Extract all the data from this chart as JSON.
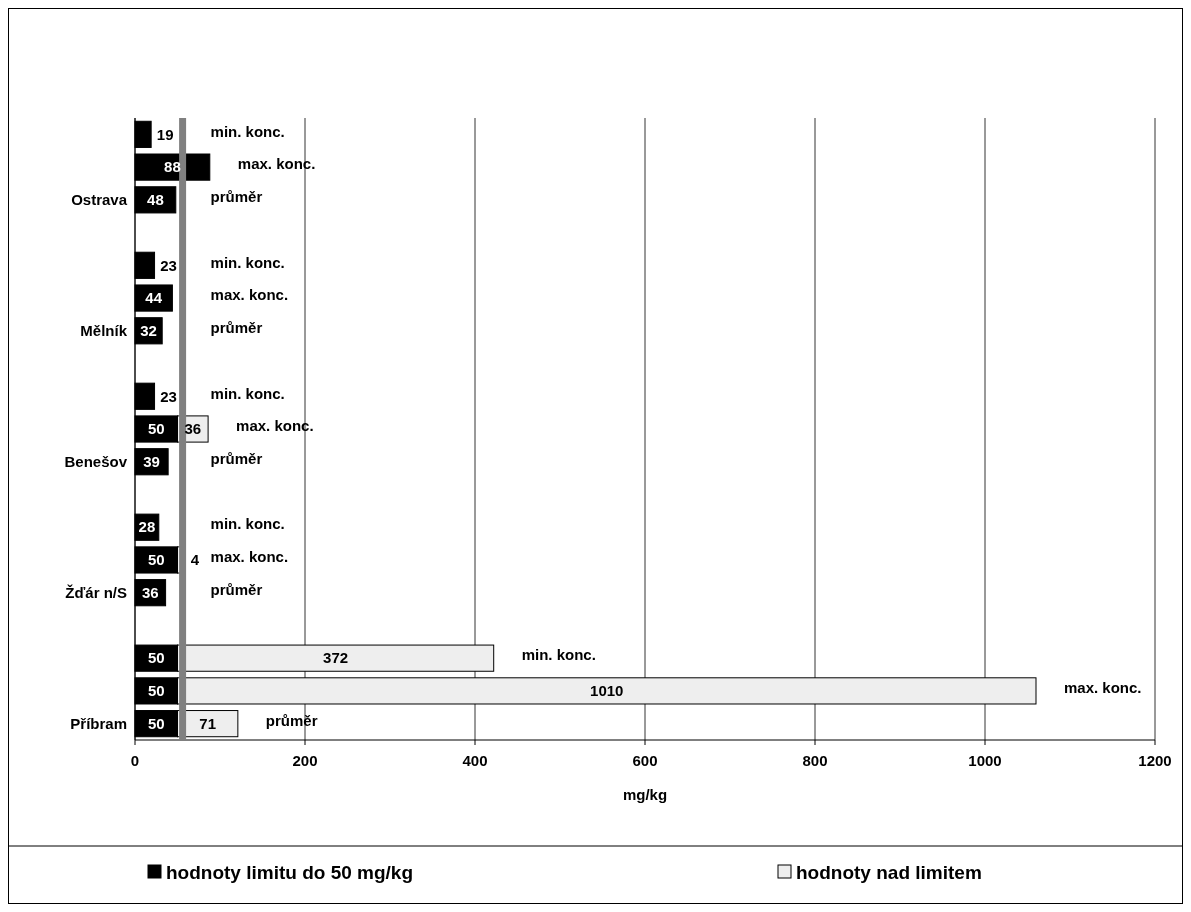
{
  "chart_data": {
    "type": "bar",
    "orientation": "horizontal",
    "stacked": true,
    "categories": [
      null,
      null,
      "Ostrava",
      null,
      null,
      null,
      "Mělník",
      null,
      null,
      null,
      "Benešov",
      null,
      null,
      null,
      "Žďár n/S",
      null,
      null,
      null,
      "Příbram"
    ],
    "series": [
      {
        "name": "hodnoty limitu do 50 mg/kg",
        "color": "#000000",
        "values": [
          19,
          88,
          48,
          null,
          23,
          44,
          32,
          null,
          23,
          50,
          39,
          null,
          28,
          50,
          36,
          null,
          50,
          50,
          50
        ]
      },
      {
        "name": "hodnoty nad limitem",
        "color": "#eeeeee",
        "values": [
          null,
          null,
          null,
          null,
          null,
          null,
          null,
          null,
          null,
          36,
          null,
          null,
          null,
          4,
          null,
          null,
          372,
          1010,
          71
        ]
      }
    ],
    "data_labels": true,
    "xlabel": "mg/kg",
    "xlim": [
      0,
      1200
    ],
    "xticks": [
      0,
      200,
      400,
      600,
      800,
      1000,
      1200
    ],
    "grid": "x",
    "legend": "bottom",
    "ref_lines": [
      {
        "axis": "x",
        "value": 56,
        "color": "#808080"
      }
    ],
    "annotations": [
      "min. konc.",
      "max. konc.",
      "průměr",
      "min. konc.",
      "max. konc.",
      "průměr",
      "min. konc.",
      "max. konc.",
      "průměr",
      "min. konc.",
      "max. konc.",
      "průměr",
      "min. konc.",
      "max. konc.",
      "průměr"
    ]
  }
}
